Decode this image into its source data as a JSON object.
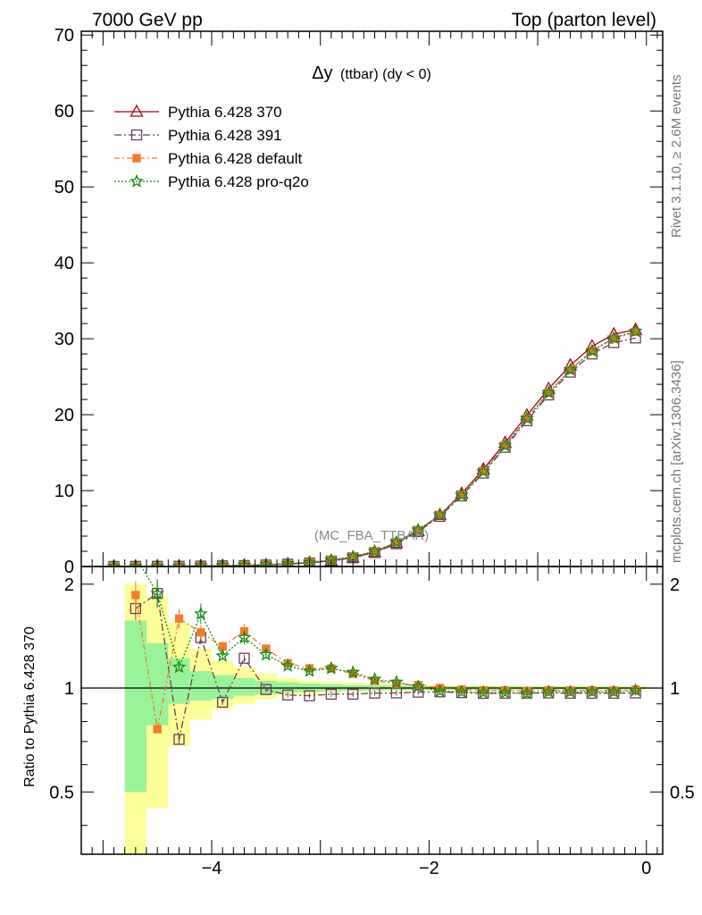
{
  "header": {
    "left": "7000 GeV pp",
    "right": "Top (parton level)"
  },
  "side_labels": {
    "rivet": "Rivet 3.1.10, ≥ 2.6M events",
    "mcplots": "mcplots.cern.ch [arXiv:1306.3436]"
  },
  "watermark": "(MC_FBA_TTBAR)",
  "colors": {
    "band_inner": "#99f399",
    "band_outer": "#fefe99",
    "s370": "#a0001e",
    "s391": "#6e3e5a",
    "sdefault": "#f47a2a",
    "sq2o": "#128b12"
  },
  "chart_data": [
    {
      "type": "line",
      "title": "Δy (ttbar) (dy < 0)",
      "title_main": "Δy",
      "title_sub": "(ttbar) (dy < 0)",
      "xlim": [
        -5.2,
        0.15
      ],
      "ylim": [
        0,
        70.5
      ],
      "y_ticks": [
        0,
        10,
        20,
        30,
        40,
        50,
        60,
        70
      ],
      "y_tick_labels": [
        "0",
        "10",
        "20",
        "30",
        "40",
        "50",
        "60",
        "70"
      ],
      "x": [
        -4.9,
        -4.7,
        -4.5,
        -4.3,
        -4.1,
        -3.9,
        -3.7,
        -3.5,
        -3.3,
        -3.1,
        -2.9,
        -2.7,
        -2.5,
        -2.3,
        -2.1,
        -1.9,
        -1.7,
        -1.5,
        -1.3,
        -1.1,
        -0.9,
        -0.7,
        -0.5,
        -0.3,
        -0.1
      ],
      "series": [
        {
          "name": "Pythia 6.428 370",
          "color": "#a0001e",
          "dash": "",
          "marker": "triangle",
          "values": [
            0.01,
            0.02,
            0.03,
            0.05,
            0.07,
            0.1,
            0.15,
            0.22,
            0.33,
            0.5,
            0.75,
            1.2,
            1.9,
            3.1,
            4.7,
            6.8,
            9.6,
            12.8,
            16.3,
            19.9,
            23.4,
            26.5,
            29.0,
            30.6,
            31.2
          ]
        },
        {
          "name": "Pythia 6.428 391",
          "color": "#6e3e5a",
          "dash": "8,3,2,3",
          "marker": "square",
          "values": [
            0.01,
            0.02,
            0.03,
            0.04,
            0.06,
            0.09,
            0.13,
            0.2,
            0.31,
            0.47,
            0.72,
            1.15,
            1.84,
            3.0,
            4.6,
            6.6,
            9.3,
            12.3,
            15.7,
            19.2,
            22.6,
            25.6,
            28.0,
            29.5,
            30.1
          ]
        },
        {
          "name": "Pythia 6.428 default",
          "color": "#f47a2a",
          "dash": "6,3,2,3",
          "marker": "fsquare",
          "values": [
            0.01,
            0.02,
            0.03,
            0.05,
            0.08,
            0.12,
            0.18,
            0.27,
            0.38,
            0.56,
            0.84,
            1.3,
            2.0,
            3.2,
            4.8,
            6.8,
            9.5,
            12.6,
            16.0,
            19.5,
            22.9,
            25.9,
            28.4,
            30.0,
            30.9
          ]
        },
        {
          "name": "Pythia 6.428 pro-q2o",
          "color": "#128b12",
          "dash": "2,2",
          "marker": "star",
          "values": [
            0.01,
            0.02,
            0.03,
            0.05,
            0.08,
            0.11,
            0.17,
            0.26,
            0.37,
            0.55,
            0.83,
            1.3,
            2.0,
            3.2,
            4.8,
            6.8,
            9.4,
            12.5,
            15.9,
            19.5,
            22.9,
            25.9,
            28.4,
            30.1,
            31.0
          ]
        }
      ],
      "legend": "top-left"
    },
    {
      "type": "line",
      "ylabel": "Ratio to Pythia 6.428 370",
      "xlim": [
        -5.2,
        0.15
      ],
      "ylim": [
        0.33,
        2.25
      ],
      "y_scale": "log",
      "y_ticks": [
        0.5,
        1,
        2
      ],
      "y_tick_labels": [
        "0.5",
        "1",
        "2"
      ],
      "x_ticks": [
        -4,
        -2,
        0
      ],
      "x_tick_labels": [
        "−4",
        "−2",
        "0"
      ],
      "x": [
        -4.7,
        -4.5,
        -4.3,
        -4.1,
        -3.9,
        -3.7,
        -3.5,
        -3.3,
        -3.1,
        -2.9,
        -2.7,
        -2.5,
        -2.3,
        -2.1,
        -1.9,
        -1.7,
        -1.5,
        -1.3,
        -1.1,
        -0.9,
        -0.7,
        -0.5,
        -0.3,
        -0.1
      ],
      "band_edges": [
        -4.8,
        -4.6,
        -4.4,
        -4.2,
        -4.0,
        -3.8,
        -3.6,
        -3.4,
        -3.2,
        -3.0,
        -2.8,
        -2.6,
        -2.4,
        -2.2,
        -2.0,
        -1.8,
        -1.6,
        -1.4,
        -1.2,
        -1.0,
        -0.8,
        -0.6,
        -0.4,
        -0.2,
        0.0
      ],
      "band_inner": [
        [
          0.5,
          1.57
        ],
        [
          0.78,
          1.35
        ],
        [
          0.9,
          1.22
        ],
        [
          0.92,
          1.12
        ],
        [
          0.93,
          1.09
        ],
        [
          0.95,
          1.07
        ],
        [
          0.96,
          1.05
        ],
        [
          0.97,
          1.04
        ],
        [
          0.975,
          1.03
        ],
        [
          0.98,
          1.025
        ],
        [
          0.983,
          1.02
        ],
        [
          0.985,
          1.018
        ],
        [
          0.987,
          1.016
        ],
        [
          0.988,
          1.014
        ],
        [
          0.99,
          1.012
        ],
        [
          0.99,
          1.012
        ],
        [
          0.99,
          1.011
        ],
        [
          0.991,
          1.01
        ],
        [
          0.991,
          1.01
        ],
        [
          0.992,
          1.009
        ],
        [
          0.992,
          1.009
        ],
        [
          0.993,
          1.008
        ],
        [
          0.993,
          1.008
        ],
        [
          0.994,
          1.007
        ]
      ],
      "band_outer": [
        [
          0.3,
          2.0
        ],
        [
          0.45,
          1.85
        ],
        [
          0.68,
          1.55
        ],
        [
          0.81,
          1.3
        ],
        [
          0.87,
          1.2
        ],
        [
          0.9,
          1.15
        ],
        [
          0.93,
          1.1
        ],
        [
          0.95,
          1.07
        ],
        [
          0.96,
          1.05
        ],
        [
          0.97,
          1.04
        ],
        [
          0.975,
          1.035
        ],
        [
          0.978,
          1.03
        ],
        [
          0.98,
          1.027
        ],
        [
          0.982,
          1.024
        ],
        [
          0.984,
          1.022
        ],
        [
          0.985,
          1.02
        ],
        [
          0.986,
          1.019
        ],
        [
          0.987,
          1.018
        ],
        [
          0.988,
          1.017
        ],
        [
          0.988,
          1.016
        ],
        [
          0.989,
          1.015
        ],
        [
          0.989,
          1.014
        ],
        [
          0.99,
          1.013
        ],
        [
          0.99,
          1.012
        ]
      ],
      "series": [
        {
          "name": "Pythia 6.428 391",
          "color": "#6e3e5a",
          "dash": "8,3,2,3",
          "marker": "square",
          "values": [
            1.7,
            1.88,
            0.71,
            1.4,
            0.91,
            1.22,
            0.99,
            0.955,
            0.95,
            0.96,
            0.96,
            0.967,
            0.968,
            0.973,
            0.975,
            0.97,
            0.965,
            0.966,
            0.967,
            0.968,
            0.966,
            0.966,
            0.966,
            0.968
          ]
        },
        {
          "name": "Pythia 6.428 default",
          "color": "#f47a2a",
          "dash": "6,3,2,3",
          "marker": "fsquare",
          "values": [
            1.86,
            0.76,
            1.59,
            1.45,
            1.32,
            1.46,
            1.3,
            1.18,
            1.14,
            1.14,
            1.1,
            1.05,
            1.03,
            1.02,
            1.0,
            0.99,
            0.985,
            0.985,
            0.98,
            0.985,
            0.985,
            0.985,
            0.985,
            0.99
          ]
        },
        {
          "name": "Pythia 6.428 pro-q2o",
          "color": "#128b12",
          "dash": "2,2",
          "marker": "star",
          "values": [
            2.4,
            1.88,
            1.15,
            1.64,
            1.24,
            1.4,
            1.25,
            1.16,
            1.12,
            1.14,
            1.11,
            1.06,
            1.04,
            1.01,
            0.98,
            0.975,
            0.97,
            0.97,
            0.965,
            0.975,
            0.975,
            0.975,
            0.975,
            0.985
          ]
        }
      ]
    }
  ]
}
